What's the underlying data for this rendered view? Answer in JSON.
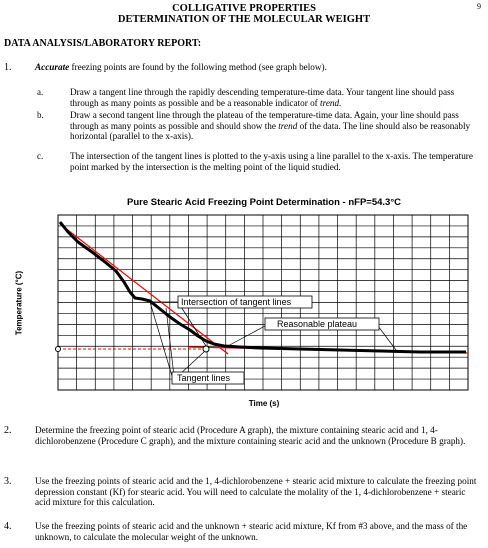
{
  "header": {
    "line1": "COLLIGATIVE PROPERTIES",
    "line2": "DETERMINATION OF THE MOLECULAR WEIGHT",
    "page_number": "9"
  },
  "section_title": "DATA ANALYSIS/LABORATORY REPORT:",
  "items": [
    {
      "num": "1.",
      "lead": "Accurate",
      "text": " freezing points are found by the following method (see graph below)."
    },
    {
      "num": "2.",
      "text": "Determine the freezing point of stearic acid (Procedure A graph), the mixture containing stearic acid and 1, 4-dichlorobenzene (Procedure C graph), and the mixture containing stearic acid and the unknown (Procedure B graph)."
    },
    {
      "num": "3.",
      "text": "Use the freezing points of stearic acid and the 1, 4-dichlorobenzene + stearic acid mixture to calculate the freezing point depression constant (Kf) for stearic acid. You will need to calculate the molality of the 1, 4-dichlorobenzene + stearic acid mixture for this calculation."
    },
    {
      "num": "4.",
      "text": "Use the freezing points of stearic acid and the unknown + stearic acid mixture, Kf from #3 above, and the mass of the unknown, to calculate the molecular weight of the unknown."
    }
  ],
  "subitems": [
    {
      "label": "a.",
      "text": "Draw a tangent line through the rapidly descending temperature-time data. Your tangent line should pass through as many points as possible and be a reasonable indicator of ",
      "em": "trend."
    },
    {
      "label": "b.",
      "text": "Draw a second tangent line through the plateau of the temperature-time data. Again, your line should pass through as many points as possible and should show the ",
      "em": "trend",
      "tail": " of the data. The line should also be reasonably horizontal (parallel to the x-axis)."
    },
    {
      "label": "c.",
      "text": "The intersection of the tangent lines is plotted to the y-axis using a line parallel to the x-axis. The temperature point marked by the intersection is the melting point of the liquid studied."
    }
  ],
  "chart_data": {
    "type": "line",
    "title": "Pure Stearic Acid Freezing Point Determination - nFP=54.3°C",
    "xlabel": "Time (s)",
    "ylabel": "Temperature (°C)",
    "annotations": [
      "Intersection of tangent lines",
      "Reasonable plateau",
      "Tangent lines"
    ],
    "colors": {
      "data": "#000000",
      "tangent": "#ff0000",
      "grid": "#000000"
    }
  }
}
